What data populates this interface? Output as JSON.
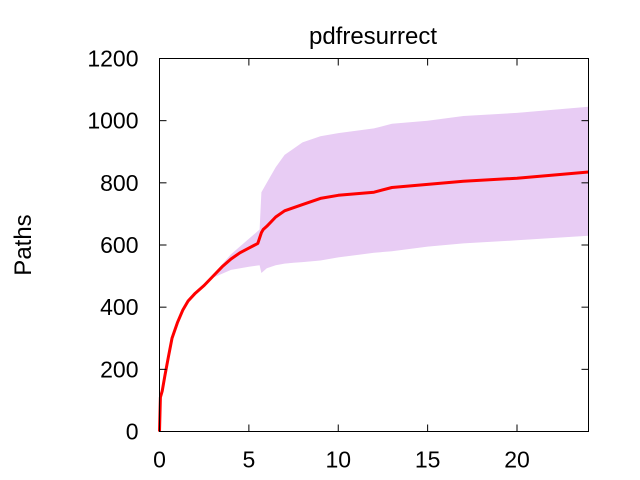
{
  "chart_data": {
    "type": "line",
    "title": "pdfresurrect",
    "xlabel": "",
    "ylabel": "Paths",
    "xlim": [
      0,
      24
    ],
    "ylim": [
      0,
      1200
    ],
    "x_ticks": [
      "0",
      "5",
      "10",
      "15",
      "20"
    ],
    "y_ticks": [
      "0",
      "200",
      "400",
      "600",
      "800",
      "1000",
      "1200"
    ],
    "grid": false,
    "legend": "none",
    "colors": {
      "line": "#ff0000",
      "band": "#e8ccf4"
    },
    "series": [
      {
        "x": [
          0,
          0.05,
          0.15,
          0.3,
          0.5,
          0.7,
          1.0,
          1.3,
          1.6,
          2.0,
          2.5,
          3.0,
          3.5,
          4.0,
          4.5,
          5.0,
          5.5,
          5.7,
          5.8,
          6.0,
          6.5,
          7.0,
          8.0,
          9.0,
          10.0,
          12.0,
          13.0,
          15.0,
          17.0,
          20.0,
          22.0,
          24.0
        ],
        "y": [
          0,
          110,
          130,
          180,
          240,
          300,
          350,
          390,
          420,
          445,
          470,
          500,
          530,
          555,
          575,
          590,
          605,
          640,
          650,
          660,
          690,
          710,
          730,
          750,
          760,
          770,
          785,
          795,
          805,
          815,
          825,
          835
        ]
      }
    ],
    "band": {
      "x": [
        0,
        0.5,
        1.0,
        2.0,
        3.0,
        4.0,
        5.0,
        5.6,
        5.7,
        6.0,
        6.5,
        7.0,
        7.5,
        8.0,
        9.0,
        10.0,
        12.0,
        13.0,
        15.0,
        17.0,
        20.0,
        24.0
      ],
      "upper": [
        0,
        240,
        350,
        445,
        505,
        570,
        620,
        650,
        770,
        800,
        850,
        890,
        910,
        930,
        950,
        960,
        975,
        990,
        1000,
        1015,
        1025,
        1045
      ],
      "lower": [
        0,
        240,
        350,
        445,
        495,
        520,
        530,
        535,
        510,
        525,
        535,
        540,
        543,
        545,
        550,
        560,
        575,
        580,
        595,
        605,
        615,
        630
      ]
    }
  }
}
